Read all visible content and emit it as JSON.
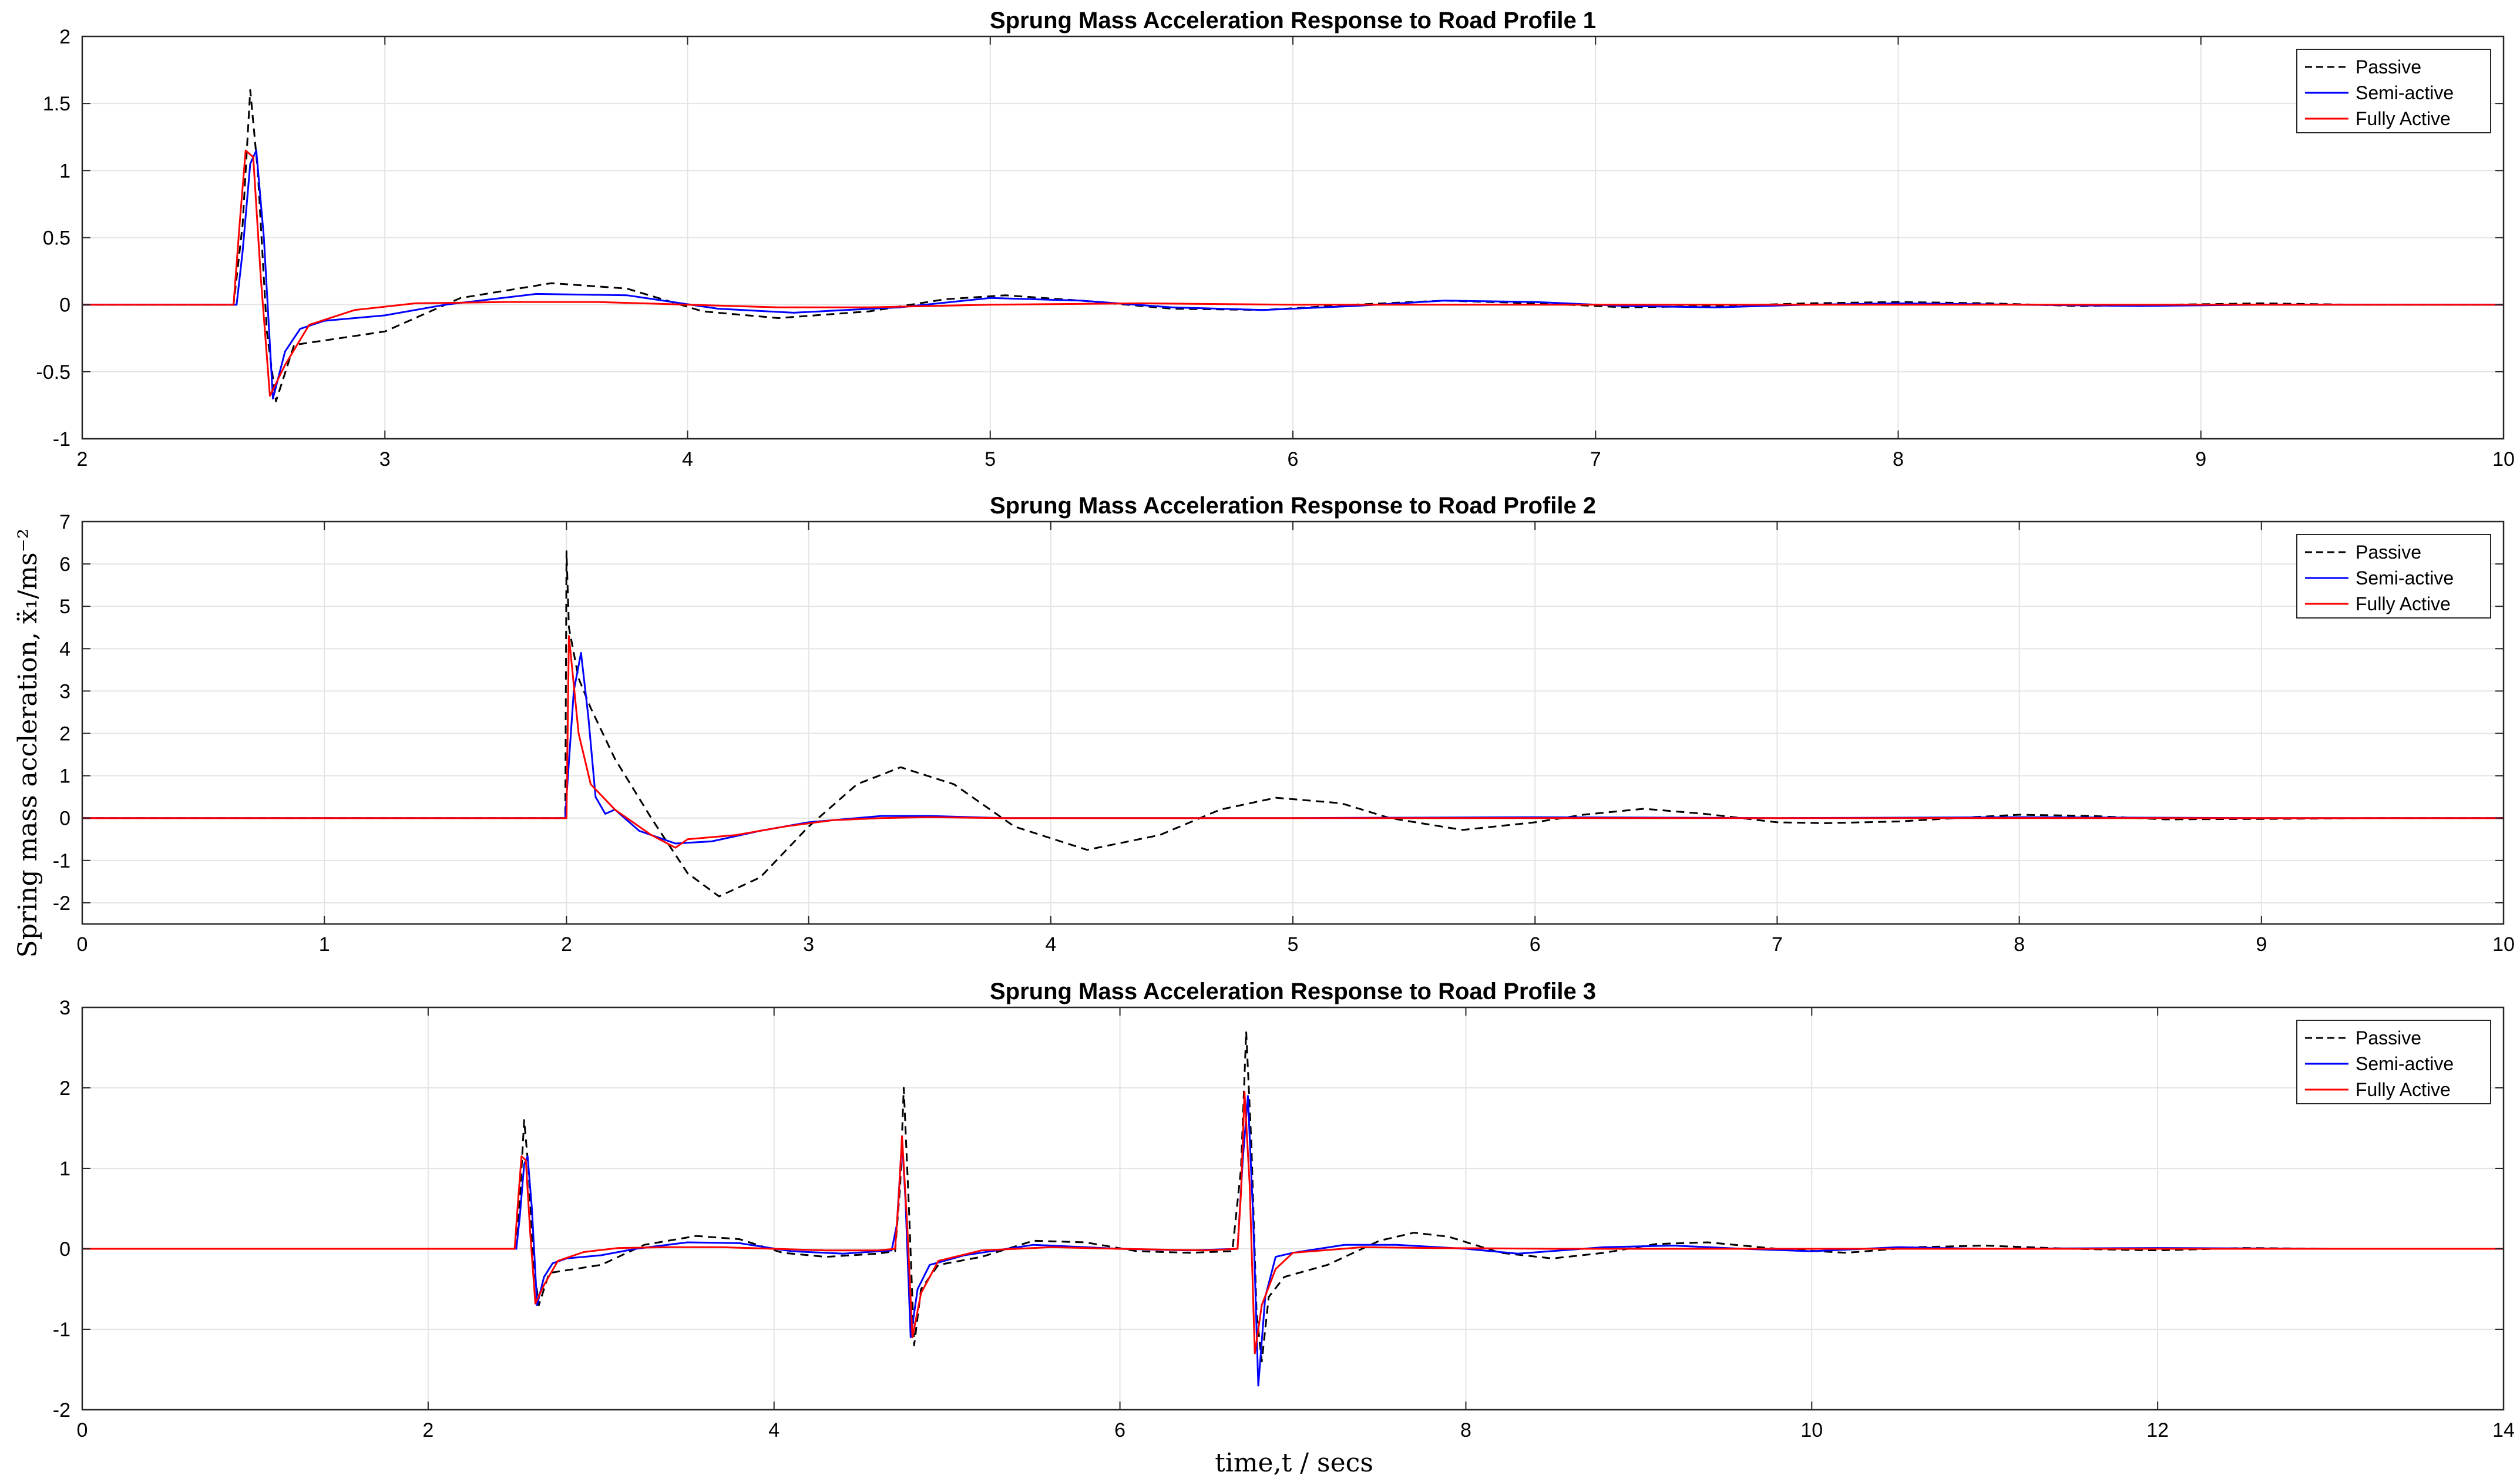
{
  "figure": {
    "ylabel": "Spring mass accleration, ẍ₁/ms⁻²",
    "xlabel": "time,t  /  secs"
  },
  "legend_labels": [
    "Passive",
    "Semi-active",
    "Fully Active"
  ],
  "colors": {
    "passive": "#000000",
    "semi": "#0000ff",
    "full": "#ff0000",
    "grid": "#e4e4e4",
    "axis": "#262626"
  },
  "chart_data": [
    {
      "type": "line",
      "title": "Sprung Mass Acceleration Response to Road Profile 1",
      "xlim": [
        2,
        10
      ],
      "ylim": [
        -1,
        2
      ],
      "xticks": [
        2,
        3,
        4,
        5,
        6,
        7,
        8,
        9,
        10
      ],
      "xtick_labels": [
        "2",
        "3",
        "4",
        "5",
        "6",
        "7",
        "8",
        "9",
        "10"
      ],
      "yticks": [
        -1,
        -0.5,
        0,
        0.5,
        1,
        1.5,
        2
      ],
      "ytick_labels": [
        "-1",
        "-0.5",
        "0",
        "0.5",
        "1",
        "1.5",
        "2"
      ],
      "grid": true,
      "legend": "top-right",
      "series": [
        {
          "name": "Passive",
          "style": "dashed",
          "x": [
            2,
            2.5,
            2.53,
            2.555,
            2.58,
            2.61,
            2.64,
            2.7,
            2.85,
            3.0,
            3.25,
            3.55,
            3.8,
            4.05,
            4.3,
            4.6,
            4.85,
            5.05,
            5.3,
            5.6,
            5.9,
            6.2,
            6.5,
            6.8,
            7.1,
            7.4,
            7.7,
            8.0,
            8.3,
            8.6,
            8.9,
            9.2,
            9.5,
            9.8,
            10
          ],
          "y": [
            0,
            0,
            0.6,
            1.6,
            1.0,
            -0.2,
            -0.72,
            -0.3,
            -0.25,
            -0.2,
            0.05,
            0.16,
            0.12,
            -0.05,
            -0.1,
            -0.05,
            0.04,
            0.07,
            0.03,
            -0.03,
            -0.04,
            0,
            0.03,
            0.01,
            -0.02,
            -0.01,
            0.01,
            0.02,
            0.01,
            -0.01,
            0,
            0.01,
            0,
            0,
            0
          ]
        },
        {
          "name": "Semi-active",
          "style": "solid",
          "x": [
            2,
            2.51,
            2.53,
            2.555,
            2.575,
            2.6,
            2.63,
            2.67,
            2.72,
            2.8,
            3.0,
            3.2,
            3.5,
            3.8,
            4.1,
            4.35,
            4.7,
            5.0,
            5.3,
            5.6,
            5.9,
            6.2,
            6.5,
            6.8,
            7.1,
            7.4,
            7.7,
            8.0,
            8.4,
            8.8,
            9.2,
            9.6,
            10
          ],
          "y": [
            0,
            0,
            0.4,
            1.05,
            1.15,
            0.5,
            -0.7,
            -0.35,
            -0.18,
            -0.12,
            -0.08,
            0.0,
            0.08,
            0.07,
            -0.03,
            -0.06,
            -0.02,
            0.05,
            0.03,
            -0.02,
            -0.04,
            -0.01,
            0.03,
            0.02,
            -0.01,
            -0.02,
            0,
            0.01,
            0,
            -0.01,
            0,
            0,
            0
          ]
        },
        {
          "name": "Fully Active",
          "style": "solid",
          "x": [
            2,
            2.5,
            2.52,
            2.54,
            2.565,
            2.59,
            2.62,
            2.67,
            2.75,
            2.9,
            3.1,
            3.4,
            3.7,
            4.0,
            4.3,
            4.6,
            5.0,
            5.5,
            6.0,
            6.5,
            7.0,
            7.5,
            8.0,
            8.5,
            9.0,
            9.5,
            10
          ],
          "y": [
            0,
            0,
            0.6,
            1.15,
            1.1,
            0.2,
            -0.68,
            -0.45,
            -0.15,
            -0.04,
            0.01,
            0.02,
            0.02,
            0.0,
            -0.02,
            -0.02,
            0.0,
            0.01,
            0.0,
            0.0,
            0.0,
            0.0,
            0.0,
            0.0,
            0.0,
            0.0,
            0.0
          ]
        }
      ]
    },
    {
      "type": "line",
      "title": "Sprung Mass Acceleration Response to Road Profile 2",
      "xlim": [
        0,
        10
      ],
      "ylim": [
        -2.5,
        7
      ],
      "xticks": [
        0,
        1,
        2,
        3,
        4,
        5,
        6,
        7,
        8,
        9,
        10
      ],
      "xtick_labels": [
        "0",
        "1",
        "2",
        "3",
        "4",
        "5",
        "6",
        "7",
        "8",
        "9",
        "10"
      ],
      "yticks": [
        -2,
        -1,
        0,
        1,
        2,
        3,
        4,
        5,
        6,
        7
      ],
      "ytick_labels": [
        "-2",
        "-1",
        "0",
        "1",
        "2",
        "3",
        "4",
        "5",
        "6",
        "7"
      ],
      "grid": true,
      "legend": "top-right",
      "series": [
        {
          "name": "Passive",
          "style": "dashed",
          "x": [
            0,
            1.995,
            2.0,
            2.01,
            2.05,
            2.1,
            2.2,
            2.35,
            2.5,
            2.63,
            2.8,
            3.0,
            3.2,
            3.38,
            3.6,
            3.85,
            4.15,
            4.45,
            4.7,
            4.93,
            5.2,
            5.4,
            5.7,
            6.0,
            6.2,
            6.45,
            6.7,
            7.0,
            7.2,
            7.5,
            7.8,
            8.0,
            8.3,
            8.6,
            9.0,
            9.5,
            10
          ],
          "y": [
            0,
            0,
            6.3,
            4.5,
            3.3,
            2.6,
            1.4,
            0.0,
            -1.3,
            -1.85,
            -1.4,
            -0.2,
            0.8,
            1.2,
            0.8,
            -0.2,
            -0.75,
            -0.4,
            0.2,
            0.48,
            0.35,
            0.0,
            -0.28,
            -0.1,
            0.08,
            0.22,
            0.1,
            -0.1,
            -0.12,
            -0.08,
            0.02,
            0.08,
            0.05,
            -0.03,
            -0.02,
            0.0,
            0.0
          ]
        },
        {
          "name": "Semi-active",
          "style": "solid",
          "x": [
            0,
            1.995,
            2.0,
            2.03,
            2.06,
            2.09,
            2.12,
            2.16,
            2.2,
            2.3,
            2.45,
            2.6,
            2.8,
            3.0,
            3.3,
            3.5,
            3.8,
            4.0,
            5.0,
            6.0,
            7.0,
            8.0,
            9.0,
            10
          ],
          "y": [
            0,
            0,
            0.5,
            3.0,
            3.9,
            2.4,
            0.5,
            0.1,
            0.2,
            -0.3,
            -0.6,
            -0.55,
            -0.3,
            -0.1,
            0.05,
            0.05,
            0.0,
            0.0,
            0.0,
            0.02,
            0.0,
            0.02,
            0.0,
            0.0
          ]
        },
        {
          "name": "Fully Active",
          "style": "solid",
          "x": [
            0,
            1.995,
            2.0,
            2.01,
            2.05,
            2.1,
            2.2,
            2.35,
            2.45,
            2.5,
            2.7,
            2.9,
            3.1,
            3.3,
            3.5,
            3.8,
            4.0,
            5.0,
            6.0,
            7.0,
            8.0,
            9.0,
            10
          ],
          "y": [
            0,
            0,
            0.0,
            4.3,
            2.0,
            0.8,
            0.2,
            -0.4,
            -0.7,
            -0.5,
            -0.4,
            -0.2,
            -0.05,
            0.0,
            0.02,
            0.0,
            0.0,
            0.0,
            0.0,
            0.0,
            0.0,
            0.0,
            0.0
          ]
        }
      ]
    },
    {
      "type": "line",
      "title": "Sprung Mass Acceleration Response to Road Profile 3",
      "xlim": [
        0,
        14
      ],
      "ylim": [
        -2,
        3
      ],
      "xticks": [
        0,
        2,
        4,
        6,
        8,
        10,
        12,
        14
      ],
      "xtick_labels": [
        "0",
        "2",
        "4",
        "6",
        "8",
        "10",
        "12",
        "14"
      ],
      "yticks": [
        -2,
        -1,
        0,
        1,
        2,
        3
      ],
      "ytick_labels": [
        "-2",
        "-1",
        "0",
        "1",
        "2",
        "3"
      ],
      "grid": true,
      "legend": "top-right",
      "series": [
        {
          "name": "Passive",
          "style": "dashed",
          "x": [
            0,
            2.5,
            2.53,
            2.555,
            2.58,
            2.61,
            2.64,
            2.7,
            2.85,
            3.0,
            3.25,
            3.55,
            3.8,
            4.05,
            4.3,
            4.6,
            4.7,
            4.73,
            4.75,
            4.78,
            4.81,
            4.85,
            4.95,
            5.2,
            5.5,
            5.8,
            6.1,
            6.4,
            6.65,
            6.7,
            6.73,
            6.76,
            6.79,
            6.82,
            6.86,
            6.95,
            7.2,
            7.5,
            7.7,
            7.9,
            8.2,
            8.5,
            8.8,
            9.1,
            9.4,
            9.8,
            10.2,
            10.6,
            11.0,
            11.5,
            12.0,
            12.5,
            13.0,
            14
          ],
          "y": [
            0,
            0,
            0.6,
            1.6,
            1.0,
            -0.2,
            -0.7,
            -0.3,
            -0.25,
            -0.2,
            0.05,
            0.16,
            0.12,
            -0.05,
            -0.1,
            -0.06,
            -0.03,
            0.8,
            2.0,
            0.5,
            -1.2,
            -0.5,
            -0.2,
            -0.1,
            0.1,
            0.08,
            -0.03,
            -0.05,
            -0.03,
            1.0,
            2.7,
            1.3,
            -0.8,
            -1.4,
            -0.6,
            -0.35,
            -0.2,
            0.1,
            0.2,
            0.15,
            -0.05,
            -0.12,
            -0.05,
            0.06,
            0.08,
            0.0,
            -0.05,
            0.02,
            0.04,
            0.0,
            -0.02,
            0.01,
            0.0,
            0.0
          ]
        },
        {
          "name": "Semi-active",
          "style": "solid",
          "x": [
            0,
            2.51,
            2.53,
            2.555,
            2.575,
            2.6,
            2.63,
            2.67,
            2.72,
            2.8,
            3.0,
            3.2,
            3.5,
            3.8,
            4.1,
            4.4,
            4.68,
            4.71,
            4.74,
            4.76,
            4.79,
            4.83,
            4.9,
            5.1,
            5.5,
            6.0,
            6.4,
            6.68,
            6.71,
            6.74,
            6.77,
            6.8,
            6.84,
            6.9,
            7.0,
            7.3,
            7.6,
            8.0,
            8.3,
            8.8,
            9.2,
            9.6,
            10.0,
            10.5,
            11.0,
            12.0,
            13.0,
            14
          ],
          "y": [
            0,
            0,
            0.4,
            1.05,
            1.15,
            0.5,
            -0.7,
            -0.35,
            -0.18,
            -0.12,
            -0.08,
            0.0,
            0.08,
            0.07,
            -0.03,
            -0.06,
            -0.02,
            0.3,
            1.35,
            0.6,
            -1.1,
            -0.5,
            -0.2,
            -0.08,
            0.05,
            0.0,
            -0.02,
            0.0,
            1.1,
            1.9,
            0.4,
            -1.7,
            -0.6,
            -0.1,
            -0.05,
            0.05,
            0.05,
            0.0,
            -0.06,
            0.02,
            0.04,
            0.0,
            -0.03,
            0.02,
            0.0,
            0.01,
            0.0,
            0.0
          ]
        },
        {
          "name": "Fully Active",
          "style": "solid",
          "x": [
            0,
            2.5,
            2.52,
            2.54,
            2.565,
            2.59,
            2.62,
            2.67,
            2.75,
            2.9,
            3.1,
            3.4,
            3.7,
            4.0,
            4.3,
            4.6,
            4.7,
            4.72,
            4.74,
            4.77,
            4.8,
            4.85,
            4.95,
            5.2,
            5.6,
            6.0,
            6.5,
            6.68,
            6.7,
            6.72,
            6.75,
            6.78,
            6.82,
            6.9,
            7.0,
            7.4,
            7.8,
            8.5,
            9.0,
            10.0,
            11.0,
            12.0,
            14
          ],
          "y": [
            0,
            0,
            0.6,
            1.15,
            1.1,
            0.2,
            -0.68,
            -0.45,
            -0.15,
            -0.04,
            0.01,
            0.02,
            0.02,
            0.0,
            -0.02,
            -0.02,
            0.0,
            0.6,
            1.4,
            0.3,
            -1.1,
            -0.55,
            -0.15,
            -0.02,
            0.02,
            0.0,
            -0.02,
            0.0,
            0.7,
            1.95,
            0.8,
            -1.3,
            -0.7,
            -0.25,
            -0.05,
            0.02,
            0.01,
            0.0,
            0.0,
            0.0,
            0.0,
            0.0,
            0.0
          ]
        }
      ]
    }
  ]
}
